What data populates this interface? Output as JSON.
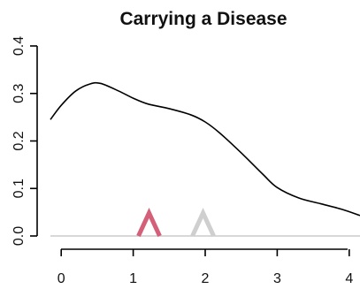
{
  "chart_data": {
    "type": "line",
    "title": "Carrying a Disease",
    "xlabel": "",
    "ylabel": "",
    "xlim": [
      -0.15,
      4.15
    ],
    "ylim": [
      0.0,
      0.4
    ],
    "x_ticks": [
      "0",
      "1",
      "2",
      "3",
      "4"
    ],
    "y_ticks": [
      "0.0",
      "0.1",
      "0.2",
      "0.3",
      "0.4"
    ],
    "grid": false,
    "series": [
      {
        "color": "#000000",
        "x": [
          -0.15,
          0.0,
          0.2,
          0.4,
          0.55,
          0.8,
          1.0,
          1.2,
          1.5,
          1.8,
          2.0,
          2.2,
          2.5,
          2.8,
          3.0,
          3.3,
          3.6,
          3.9,
          4.15
        ],
        "y": [
          0.245,
          0.275,
          0.305,
          0.32,
          0.321,
          0.305,
          0.29,
          0.278,
          0.268,
          0.255,
          0.24,
          0.217,
          0.175,
          0.13,
          0.102,
          0.08,
          0.068,
          0.056,
          0.043
        ]
      }
    ],
    "markers": [
      {
        "x": 1.22,
        "color": "#d45f78"
      },
      {
        "x": 1.97,
        "color": "#cfcfcf"
      }
    ],
    "baseline_color": "#cccccc"
  }
}
